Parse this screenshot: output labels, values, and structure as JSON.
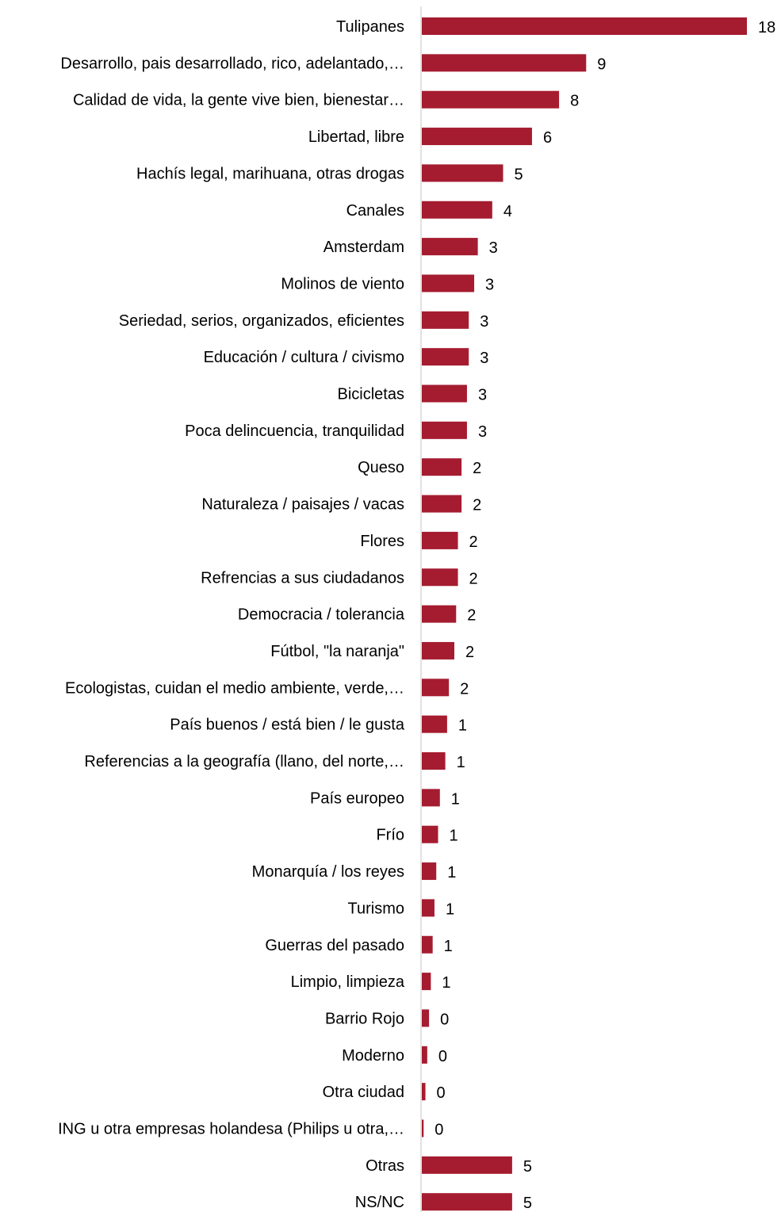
{
  "chart_data": {
    "type": "bar",
    "orientation": "horizontal",
    "title": "",
    "xlabel": "",
    "ylabel": "",
    "grid": false,
    "legend": "none",
    "bar_color": "#A51C30",
    "axis_color": "#D9D9D9",
    "categories": [
      "Tulipanes",
      "Desarrollo, pais desarrollado, rico, adelantado,…",
      "Calidad de vida, la gente vive bien, bienestar…",
      "Libertad, libre",
      "Hachís legal, marihuana, otras drogas",
      "Canales",
      "Amsterdam",
      "Molinos de viento",
      "Seriedad, serios, organizados, eficientes",
      "Educación / cultura / civismo",
      "Bicicletas",
      "Poca delincuencia, tranquilidad",
      "Queso",
      "Naturaleza / paisajes / vacas",
      "Flores",
      "Refrencias a sus ciudadanos",
      "Democracia / tolerancia",
      "Fútbol, \"la naranja\"",
      "Ecologistas, cuidan el medio ambiente, verde,…",
      "País buenos / está bien / le gusta",
      "Referencias a la geografía (llano, del norte,…",
      "País europeo",
      "Frío",
      "Monarquía / los reyes",
      "Turismo",
      "Guerras del pasado",
      "Limpio, limpieza",
      "Barrio Rojo",
      "Moderno",
      "Otra ciudad",
      "ING u otra empresas holandesa (Philips u otra,…",
      "Otras",
      "NS/NC"
    ],
    "values": [
      18.0,
      9.1,
      7.6,
      6.1,
      4.5,
      3.9,
      3.1,
      2.9,
      2.6,
      2.6,
      2.5,
      2.5,
      2.2,
      2.2,
      2.0,
      2.0,
      1.9,
      1.8,
      1.5,
      1.4,
      1.3,
      1.0,
      0.9,
      0.8,
      0.7,
      0.6,
      0.5,
      0.4,
      0.3,
      0.2,
      0.1,
      5.0,
      5.0
    ],
    "value_labels": [
      "18",
      "9",
      "8",
      "6",
      "5",
      "4",
      "3",
      "3",
      "3",
      "3",
      "3",
      "3",
      "2",
      "2",
      "2",
      "2",
      "2",
      "2",
      "2",
      "1",
      "1",
      "1",
      "1",
      "1",
      "1",
      "1",
      "1",
      "0",
      "0",
      "0",
      "0",
      "5",
      "5"
    ]
  }
}
